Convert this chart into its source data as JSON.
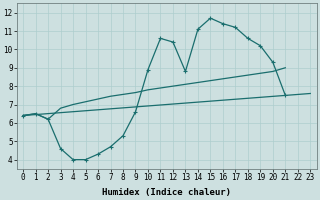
{
  "bg_color": "#cde0e0",
  "grid_color": "#aecece",
  "line_color": "#1a6e6e",
  "xlabel": "Humidex (Indice chaleur)",
  "xlim": [
    -0.5,
    23.5
  ],
  "ylim": [
    3.5,
    12.5
  ],
  "yticks": [
    4,
    5,
    6,
    7,
    8,
    9,
    10,
    11,
    12
  ],
  "xticks": [
    0,
    1,
    2,
    3,
    4,
    5,
    6,
    7,
    8,
    9,
    10,
    11,
    12,
    13,
    14,
    15,
    16,
    17,
    18,
    19,
    20,
    21,
    22,
    23
  ],
  "curve1_x": [
    0,
    1,
    2,
    3,
    4,
    5,
    6,
    7,
    8,
    9,
    10,
    11,
    12,
    13,
    14,
    15,
    16,
    17,
    18,
    19,
    20,
    21
  ],
  "curve1_y": [
    6.4,
    6.5,
    6.2,
    4.6,
    4.0,
    4.0,
    4.3,
    4.7,
    5.3,
    6.6,
    8.9,
    10.6,
    10.4,
    8.8,
    11.1,
    11.7,
    11.4,
    11.2,
    10.6,
    10.2,
    9.3,
    7.5
  ],
  "curve2_x": [
    0,
    1,
    2,
    3,
    4,
    5,
    6,
    7,
    8,
    9,
    10,
    11,
    12,
    13,
    14,
    15,
    16,
    17,
    18,
    19,
    20,
    21
  ],
  "curve2_y": [
    6.4,
    6.5,
    6.2,
    6.8,
    7.0,
    7.15,
    7.3,
    7.45,
    7.55,
    7.65,
    7.8,
    7.9,
    8.0,
    8.1,
    8.2,
    8.3,
    8.4,
    8.5,
    8.6,
    8.7,
    8.8,
    9.0
  ],
  "curve3_x": [
    0,
    23
  ],
  "curve3_y": [
    6.4,
    7.6
  ],
  "figsize": [
    3.2,
    2.0
  ],
  "dpi": 100,
  "lw": 0.9,
  "marker": "+",
  "markersize": 3.5,
  "tick_fontsize": 5.5,
  "xlabel_fontsize": 6.5
}
